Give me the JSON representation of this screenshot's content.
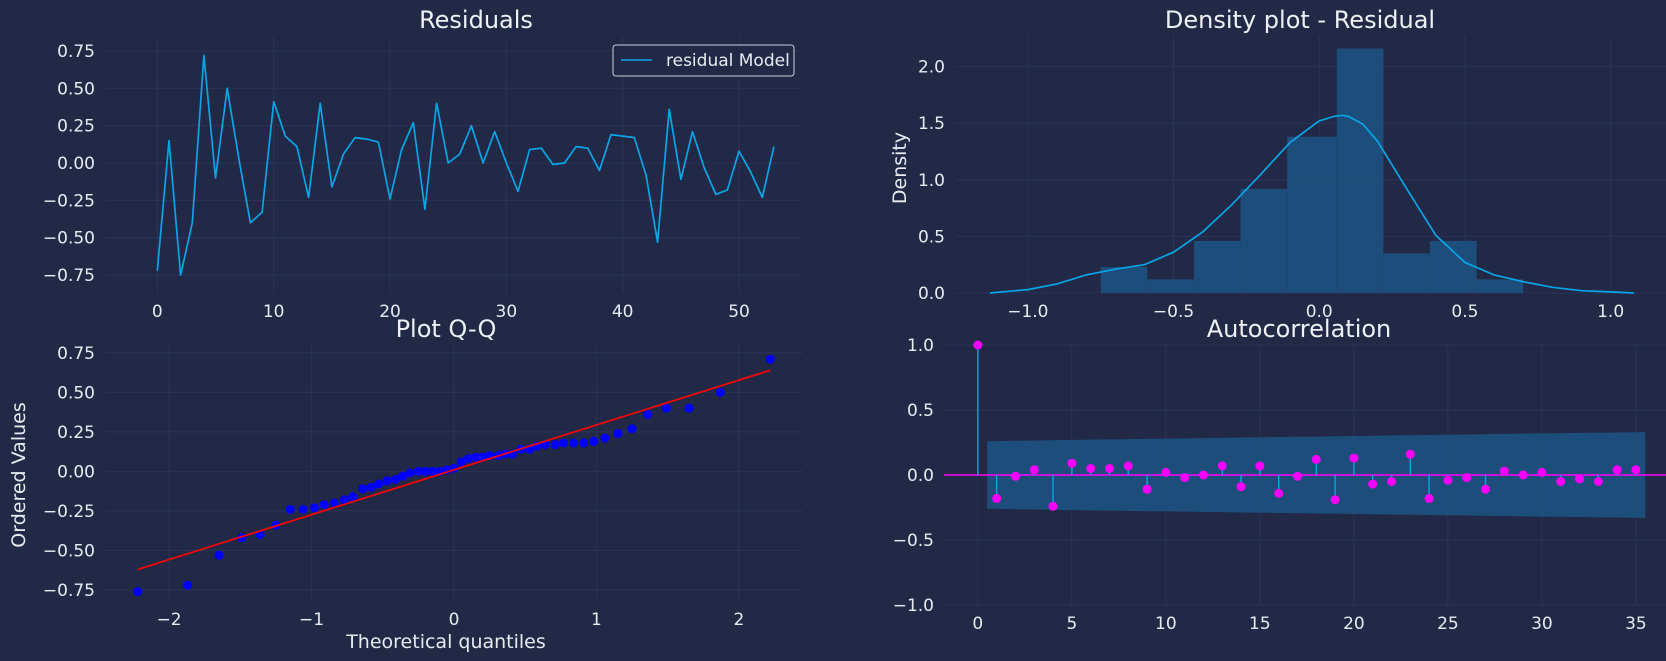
{
  "colors": {
    "background": "#212946",
    "grid": "#2A3459",
    "cyan": "#08A5E8",
    "blue": "#0000FF",
    "red": "#FF0000",
    "magenta": "#FE00FE",
    "band": "#1E4F7D",
    "text": "#E8EBF2"
  },
  "chart_data": [
    {
      "type": "line",
      "title": "Residuals",
      "xlabel": "",
      "ylabel": "",
      "xlim": [
        -4.5,
        55.5
      ],
      "ylim": [
        -0.87,
        0.85
      ],
      "xticks": [
        0,
        10,
        20,
        30,
        40,
        50
      ],
      "xtick_labels": [
        "0",
        "10",
        "20",
        "30",
        "40",
        "50"
      ],
      "yticks": [
        -0.75,
        -0.5,
        -0.25,
        0,
        0.25,
        0.5,
        0.75
      ],
      "ytick_labels": [
        "−0.75",
        "−0.50",
        "−0.25",
        "0.00",
        "0.25",
        "0.50",
        "0.75"
      ],
      "grid": true,
      "legend": "top-right",
      "series": [
        {
          "name": "residual Model",
          "x": [
            0,
            1,
            2,
            3,
            4,
            5,
            6,
            7,
            8,
            9,
            10,
            11,
            12,
            13,
            14,
            15,
            16,
            17,
            18,
            19,
            20,
            21,
            22,
            23,
            24,
            25,
            26,
            27,
            28,
            29,
            30,
            31,
            32,
            33,
            34,
            35,
            36,
            37,
            38,
            39,
            40,
            41,
            42,
            43,
            44,
            45,
            46,
            47,
            48,
            49,
            50,
            51,
            52,
            53
          ],
          "values": [
            -0.72,
            0.15,
            -0.75,
            -0.4,
            0.72,
            -0.1,
            0.5,
            0.03,
            -0.4,
            -0.33,
            0.41,
            0.18,
            0.11,
            -0.23,
            0.4,
            -0.16,
            0.06,
            0.17,
            0.16,
            0.14,
            -0.24,
            0.09,
            0.27,
            -0.31,
            0.4,
            0.0,
            0.06,
            0.25,
            0.0,
            0.21,
            0.0,
            -0.19,
            0.09,
            0.1,
            -0.01,
            0.0,
            0.11,
            0.1,
            -0.05,
            0.19,
            0.18,
            0.17,
            -0.08,
            -0.53,
            0.36,
            -0.11,
            0.21,
            -0.03,
            -0.21,
            -0.18,
            0.08,
            -0.06,
            -0.23,
            0.11
          ]
        }
      ]
    },
    {
      "type": "area",
      "title": "Density plot - Residual",
      "xlabel": "",
      "ylabel": "Density",
      "xlim": [
        -1.25,
        1.19
      ],
      "ylim": [
        0,
        2.27
      ],
      "xticks": [
        -1,
        -0.5,
        0,
        0.5,
        1
      ],
      "xtick_labels": [
        "−1.0",
        "−0.5",
        "0.0",
        "0.5",
        "1.0"
      ],
      "yticks": [
        0,
        0.5,
        1,
        1.5,
        2
      ],
      "ytick_labels": [
        "0.0",
        "0.5",
        "1.0",
        "1.5",
        "2.0"
      ],
      "grid": true,
      "histogram": {
        "bin_edges": [
          -0.75,
          -0.59,
          -0.43,
          -0.27,
          -0.11,
          0.06,
          0.22,
          0.38,
          0.54,
          0.7
        ],
        "density": [
          0.23,
          0.12,
          0.46,
          0.92,
          1.38,
          2.16,
          0.35,
          0.46,
          0.12
        ]
      },
      "kde": {
        "x": [
          -1.13,
          -1.0,
          -0.9,
          -0.8,
          -0.7,
          -0.6,
          -0.5,
          -0.4,
          -0.3,
          -0.2,
          -0.1,
          0.0,
          0.05,
          0.08,
          0.1,
          0.15,
          0.2,
          0.3,
          0.4,
          0.5,
          0.6,
          0.7,
          0.8,
          0.9,
          1.0,
          1.08
        ],
        "values": [
          0.0,
          0.03,
          0.08,
          0.16,
          0.21,
          0.25,
          0.36,
          0.54,
          0.78,
          1.05,
          1.33,
          1.52,
          1.56,
          1.57,
          1.56,
          1.49,
          1.34,
          0.92,
          0.51,
          0.27,
          0.16,
          0.1,
          0.05,
          0.02,
          0.01,
          0.0
        ]
      }
    },
    {
      "type": "scatter",
      "title": "Plot Q-Q",
      "xlabel": "Theoretical quantiles",
      "ylabel": "Ordered Values",
      "xlim": [
        -2.45,
        2.45
      ],
      "ylim": [
        -0.82,
        0.8
      ],
      "xticks": [
        -2,
        -1,
        0,
        1,
        2
      ],
      "xtick_labels": [
        "−2",
        "−1",
        "0",
        "1",
        "2"
      ],
      "yticks": [
        -0.75,
        -0.5,
        -0.25,
        0,
        0.25,
        0.5,
        0.75
      ],
      "ytick_labels": [
        "−0.75",
        "−0.50",
        "−0.25",
        "0.00",
        "0.25",
        "0.50",
        "0.75"
      ],
      "grid": true,
      "fit_line": {
        "x": [
          -2.22,
          2.22
        ],
        "y": [
          -0.62,
          0.64
        ]
      },
      "points": {
        "x": [
          -2.22,
          -1.87,
          -1.65,
          -1.49,
          -1.36,
          -1.25,
          -1.15,
          -1.06,
          -0.98,
          -0.91,
          -0.84,
          -0.77,
          -0.71,
          -0.64,
          -0.58,
          -0.53,
          -0.47,
          -0.41,
          -0.36,
          -0.31,
          -0.25,
          -0.2,
          -0.15,
          -0.1,
          -0.05,
          0.0,
          0.05,
          0.1,
          0.15,
          0.2,
          0.25,
          0.31,
          0.36,
          0.41,
          0.47,
          0.53,
          0.58,
          0.64,
          0.71,
          0.77,
          0.84,
          0.91,
          0.98,
          1.06,
          1.15,
          1.25,
          1.36,
          1.49,
          1.65,
          1.87,
          2.22
        ],
        "y": [
          -0.76,
          -0.72,
          -0.53,
          -0.42,
          -0.4,
          -0.34,
          -0.24,
          -0.24,
          -0.23,
          -0.21,
          -0.2,
          -0.18,
          -0.16,
          -0.11,
          -0.1,
          -0.08,
          -0.06,
          -0.05,
          -0.03,
          -0.01,
          0.0,
          0.0,
          0.0,
          0.0,
          0.01,
          0.02,
          0.06,
          0.08,
          0.09,
          0.09,
          0.1,
          0.1,
          0.11,
          0.11,
          0.14,
          0.14,
          0.16,
          0.17,
          0.17,
          0.18,
          0.18,
          0.18,
          0.19,
          0.21,
          0.24,
          0.27,
          0.36,
          0.4,
          0.4,
          0.5,
          0.71
        ]
      }
    },
    {
      "type": "scatter",
      "title": "Autocorrelation",
      "xlabel": "",
      "ylabel": "",
      "xlim": [
        -1.8,
        36.6
      ],
      "ylim": [
        -1.0,
        1.0
      ],
      "xticks": [
        0,
        5,
        10,
        15,
        20,
        25,
        30,
        35
      ],
      "xtick_labels": [
        "0",
        "5",
        "10",
        "15",
        "20",
        "25",
        "30",
        "35"
      ],
      "yticks": [
        -1,
        -0.5,
        0,
        0.5,
        1
      ],
      "ytick_labels": [
        "−1.0",
        "−0.5",
        "0.0",
        "0.5",
        "1.0"
      ],
      "grid": true,
      "lags": [
        0,
        1,
        2,
        3,
        4,
        5,
        6,
        7,
        8,
        9,
        10,
        11,
        12,
        13,
        14,
        15,
        16,
        17,
        18,
        19,
        20,
        21,
        22,
        23,
        24,
        25,
        26,
        27,
        28,
        29,
        30,
        31,
        32,
        33,
        34,
        35
      ],
      "acf": [
        1.0,
        -0.18,
        -0.01,
        0.04,
        -0.24,
        0.09,
        0.05,
        0.05,
        0.07,
        -0.11,
        0.02,
        -0.02,
        0.0,
        0.07,
        -0.09,
        0.07,
        -0.14,
        -0.01,
        0.12,
        -0.19,
        0.13,
        -0.07,
        -0.05,
        0.16,
        -0.18,
        -0.04,
        -0.02,
        -0.11,
        0.03,
        0.0,
        0.02,
        -0.05,
        -0.03,
        -0.05,
        0.04,
        0.04
      ],
      "confidence_band": {
        "lags": [
          0.5,
          5,
          10,
          15,
          20,
          25,
          30,
          35.5
        ],
        "upper": [
          0.26,
          0.27,
          0.28,
          0.29,
          0.3,
          0.31,
          0.32,
          0.33
        ],
        "lower": [
          -0.26,
          -0.27,
          -0.28,
          -0.29,
          -0.3,
          -0.31,
          -0.32,
          -0.33
        ]
      }
    }
  ]
}
